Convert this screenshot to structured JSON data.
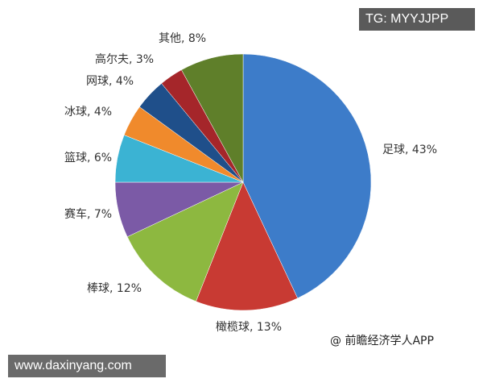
{
  "chart_data": {
    "type": "pie",
    "slices": [
      {
        "label": "足球, 43%",
        "name": "足球",
        "value": 43,
        "color": "#3d7cc9"
      },
      {
        "label": "橄榄球, 13%",
        "name": "橄榄球",
        "value": 13,
        "color": "#c83a33"
      },
      {
        "label": "棒球, 12%",
        "name": "棒球",
        "value": 12,
        "color": "#8db840"
      },
      {
        "label": "赛车, 7%",
        "name": "赛车",
        "value": 7,
        "color": "#7b5aa6"
      },
      {
        "label": "篮球, 6%",
        "name": "篮球",
        "value": 6,
        "color": "#3bb3d3"
      },
      {
        "label": "冰球, 4%",
        "name": "冰球",
        "value": 4,
        "color": "#f08a2c"
      },
      {
        "label": "网球, 4%",
        "name": "网球",
        "value": 4,
        "color": "#1f4f8a"
      },
      {
        "label": "高尔夫, 3%",
        "name": "高尔夫",
        "value": 3,
        "color": "#a5262a"
      },
      {
        "label": "其他, 8%",
        "name": "其他",
        "value": 8,
        "color": "#5f7f2a"
      }
    ],
    "start": "top",
    "direction": "clockwise"
  },
  "watermarks": {
    "top_right": "TG: MYYJJPP",
    "bottom_left": "www.daxinyang.com",
    "source": "@ 前瞻经济学人APP"
  }
}
